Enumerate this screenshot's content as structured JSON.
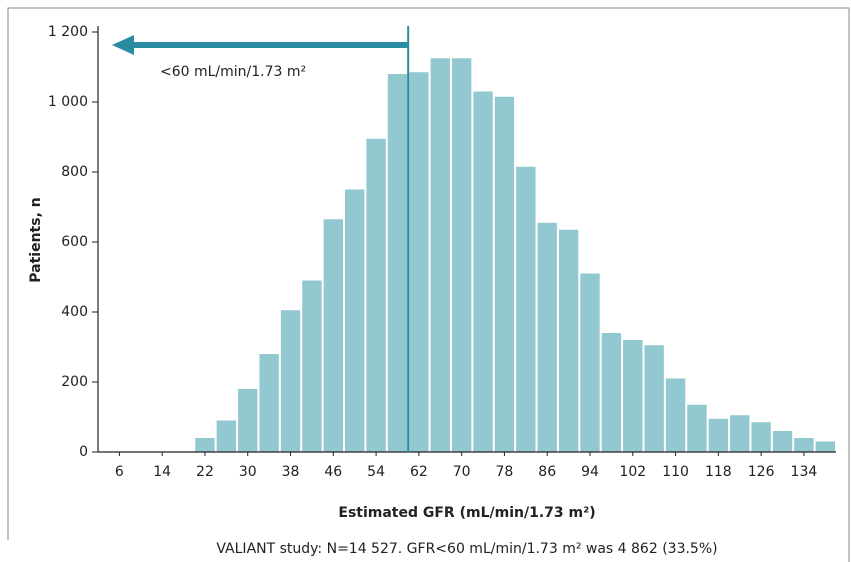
{
  "chart_data": {
    "type": "histogram",
    "y_label": "Patients, n",
    "x_label": "Estimated GFR (mL/min/1.73 m²)",
    "footnote": "VALIANT study: N=14 527. GFR<60 mL/min/1.73 m² was 4 862 (33.5%)",
    "annotation": "<60 mL/min/1.73 m²",
    "threshold": 60,
    "bins": [
      20,
      24,
      28,
      32,
      36,
      40,
      44,
      48,
      52,
      56,
      60,
      64,
      68,
      72,
      76,
      80,
      84,
      88,
      92,
      96,
      100,
      104,
      108,
      112,
      116,
      120,
      124,
      128,
      132,
      136,
      140
    ],
    "counts": [
      40,
      90,
      180,
      280,
      405,
      490,
      665,
      750,
      895,
      1080,
      1085,
      1125,
      1125,
      1030,
      1015,
      815,
      655,
      635,
      510,
      340,
      320,
      305,
      210,
      135,
      95,
      105,
      85,
      60,
      40,
      30
    ],
    "color": "#92c9d1",
    "annotation_color": "#2a8ca0",
    "xlim": [
      2,
      140
    ],
    "xticks": [
      6,
      14,
      22,
      30,
      38,
      46,
      54,
      62,
      70,
      78,
      86,
      94,
      102,
      110,
      118,
      126,
      134
    ],
    "ylim": [
      0,
      1200
    ],
    "yticks": [
      0,
      200,
      400,
      600,
      800,
      {
        "value": 1000,
        "label": "1 000"
      },
      {
        "value": 1200,
        "label": "1 200"
      }
    ]
  }
}
